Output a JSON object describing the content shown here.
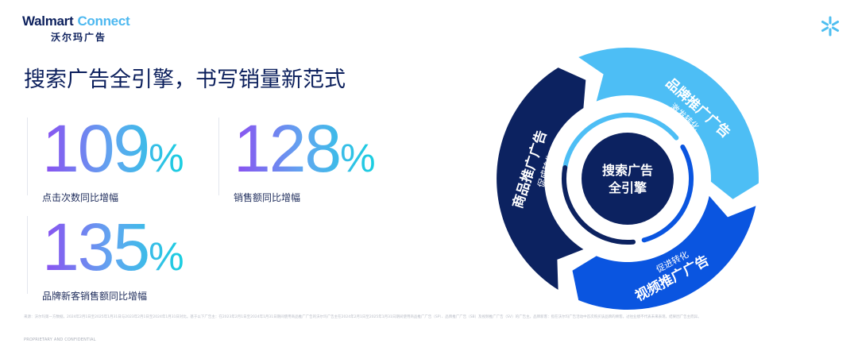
{
  "logo": {
    "brand_part1": "Walmart",
    "brand_part2": "Connect",
    "chinese": "沃尔玛广告"
  },
  "title": "搜索广告全引擎，书写销量新范式",
  "stats": [
    {
      "value": "109",
      "unit": "%",
      "label": "点击次数同比增幅"
    },
    {
      "value": "128",
      "unit": "%",
      "label": "销售额同比增幅"
    },
    {
      "value": "135",
      "unit": "%",
      "label": "品牌新客销售额同比增幅"
    }
  ],
  "diagram": {
    "center": [
      "搜索广告",
      "全引擎"
    ],
    "segments": [
      {
        "title": "品牌推广广告",
        "subtitle": "激发转化",
        "color": "#4dbef5"
      },
      {
        "title": "视频推广广告",
        "subtitle": "促进转化",
        "color": "#0a55e0"
      },
      {
        "title": "商品推广广告",
        "subtitle": "促成转化",
        "color": "#0c2260"
      }
    ]
  },
  "footnote": "来源：沃尔玛第一方数据，2024年2月1日至2025年1月31日与2023年2月1日至2024年1月31日对比。基于以下广告主：在2023年2月1日至2024年1月31日期间使用商品推广广告的沃尔玛广告主在2024年2月1日至2025年1月31日期间使用商品推广广告（SP）、品牌推广广告（SB）及视频推广广告（SV）的广告主。品牌新客：指在沃尔玛广告活动中首次购买该品牌的顾客。过往业绩不代表未来表现，结果因广告主而异。",
  "confidential": "PROPRIETARY AND CONFIDENTIAL",
  "colors": {
    "navy": "#0b1f5c",
    "light_blue": "#4dbef5",
    "blue": "#0a55e0",
    "dark_navy": "#0c2260"
  }
}
